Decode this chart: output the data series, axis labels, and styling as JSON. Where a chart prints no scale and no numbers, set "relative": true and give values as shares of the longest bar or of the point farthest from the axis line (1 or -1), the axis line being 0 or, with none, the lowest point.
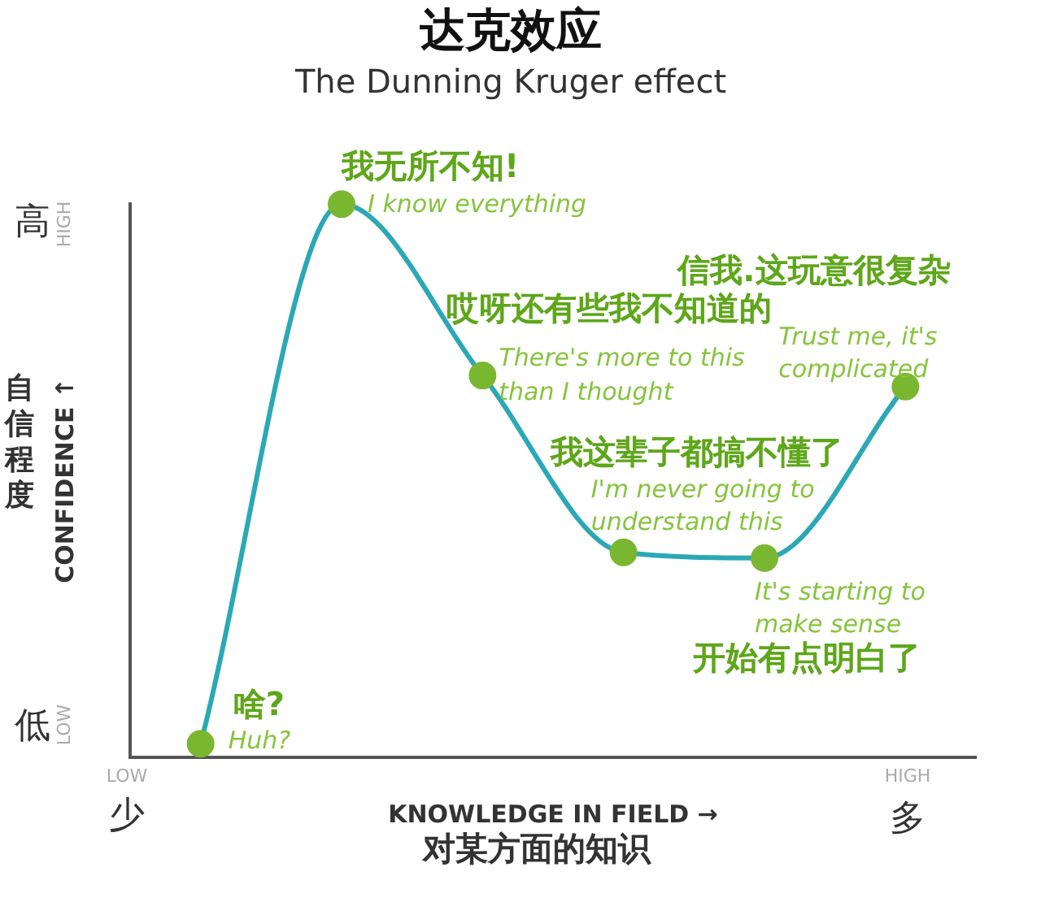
{
  "chart_data": {
    "type": "line",
    "title": "达克效应",
    "subtitle": "The Dunning Kruger effect",
    "xlabel": "KNOWLEDGE IN FIELD →",
    "ylabel": "CONFIDENCE ↑",
    "relative": true,
    "marker": "circle",
    "line_style": "solid",
    "grid": false,
    "legend": false,
    "categories": [
      null,
      null,
      null,
      null,
      null,
      null
    ],
    "series": [
      {
        "color": "#2ba8b5",
        "values": [
          0.024,
          1,
          0.69,
          0.37,
          0.36,
          0.67
        ]
      }
    ],
    "annotations": [
      "高",
      "HIGH",
      "低",
      "LOW",
      "自信程度",
      "少",
      "多",
      "对某方面的知识",
      "LOW",
      "HIGH",
      "我无所不知!",
      "I know everything",
      "哎呀还有些我不知道的",
      "There's more to this",
      "than I thought",
      "我这辈子都搞不懂了",
      "I'm never going to",
      "understand this",
      "It's starting to",
      "make sense",
      "开始有点明白了",
      "信我.这玩意很复杂",
      "Trust me, it's",
      "complicated",
      "啥?",
      "Huh?"
    ]
  }
}
